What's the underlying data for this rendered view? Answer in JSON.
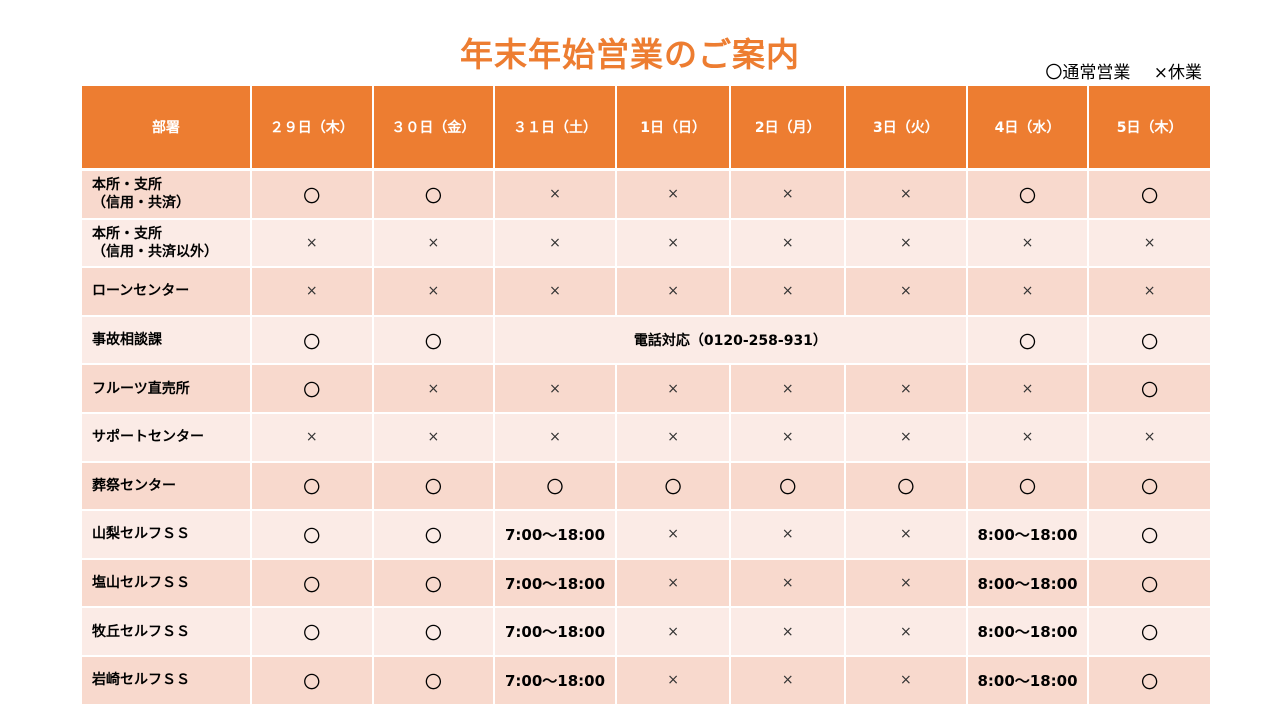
{
  "title": "年末年始営業のご案内",
  "legend": {
    "open": "〇通常営業",
    "closed": "×休業"
  },
  "table": {
    "headers": [
      "部署",
      "２９日（木）",
      "３０日（金）",
      "３１日（土）",
      "1日（日）",
      "2日（月）",
      "3日（火）",
      "4日（水）",
      "5日（木）"
    ],
    "rows": [
      {
        "dept": [
          "本所・支所",
          "（信用・共済）"
        ],
        "cells": [
          "〇",
          "〇",
          "×",
          "×",
          "×",
          "×",
          "〇",
          "〇"
        ]
      },
      {
        "dept": [
          "本所・支所",
          "（信用・共済以外）"
        ],
        "cells": [
          "×",
          "×",
          "×",
          "×",
          "×",
          "×",
          "×",
          "×"
        ]
      },
      {
        "dept": [
          "ローンセンター"
        ],
        "cells": [
          "×",
          "×",
          "×",
          "×",
          "×",
          "×",
          "×",
          "×"
        ]
      },
      {
        "dept": [
          "事故相談課"
        ],
        "cells": [
          "〇",
          "〇",
          {
            "text": "電話対応（0120-258-931）",
            "span": 4
          },
          "〇",
          "〇"
        ]
      },
      {
        "dept": [
          "フルーツ直売所"
        ],
        "cells": [
          "〇",
          "×",
          "×",
          "×",
          "×",
          "×",
          "×",
          "〇"
        ]
      },
      {
        "dept": [
          "サポートセンター"
        ],
        "cells": [
          "×",
          "×",
          "×",
          "×",
          "×",
          "×",
          "×",
          "×"
        ]
      },
      {
        "dept": [
          "葬祭センター"
        ],
        "cells": [
          "〇",
          "〇",
          "〇",
          "〇",
          "〇",
          "〇",
          "〇",
          "〇"
        ]
      },
      {
        "dept": [
          "山梨セルフＳＳ"
        ],
        "cells": [
          "〇",
          "〇",
          "7:00～18:00",
          "×",
          "×",
          "×",
          "8:00～18:00",
          "〇"
        ]
      },
      {
        "dept": [
          "塩山セルフＳＳ"
        ],
        "cells": [
          "〇",
          "〇",
          "7:00～18:00",
          "×",
          "×",
          "×",
          "8:00～18:00",
          "〇"
        ]
      },
      {
        "dept": [
          "牧丘セルフＳＳ"
        ],
        "cells": [
          "〇",
          "〇",
          "7:00～18:00",
          "×",
          "×",
          "×",
          "8:00～18:00",
          "〇"
        ]
      },
      {
        "dept": [
          "岩崎セルフＳＳ"
        ],
        "cells": [
          "〇",
          "〇",
          "7:00～18:00",
          "×",
          "×",
          "×",
          "8:00～18:00",
          "〇"
        ]
      }
    ]
  },
  "colors": {
    "accent": "#ed7d31",
    "row_dark": "#f8d9cd",
    "row_light": "#fbebe6"
  }
}
